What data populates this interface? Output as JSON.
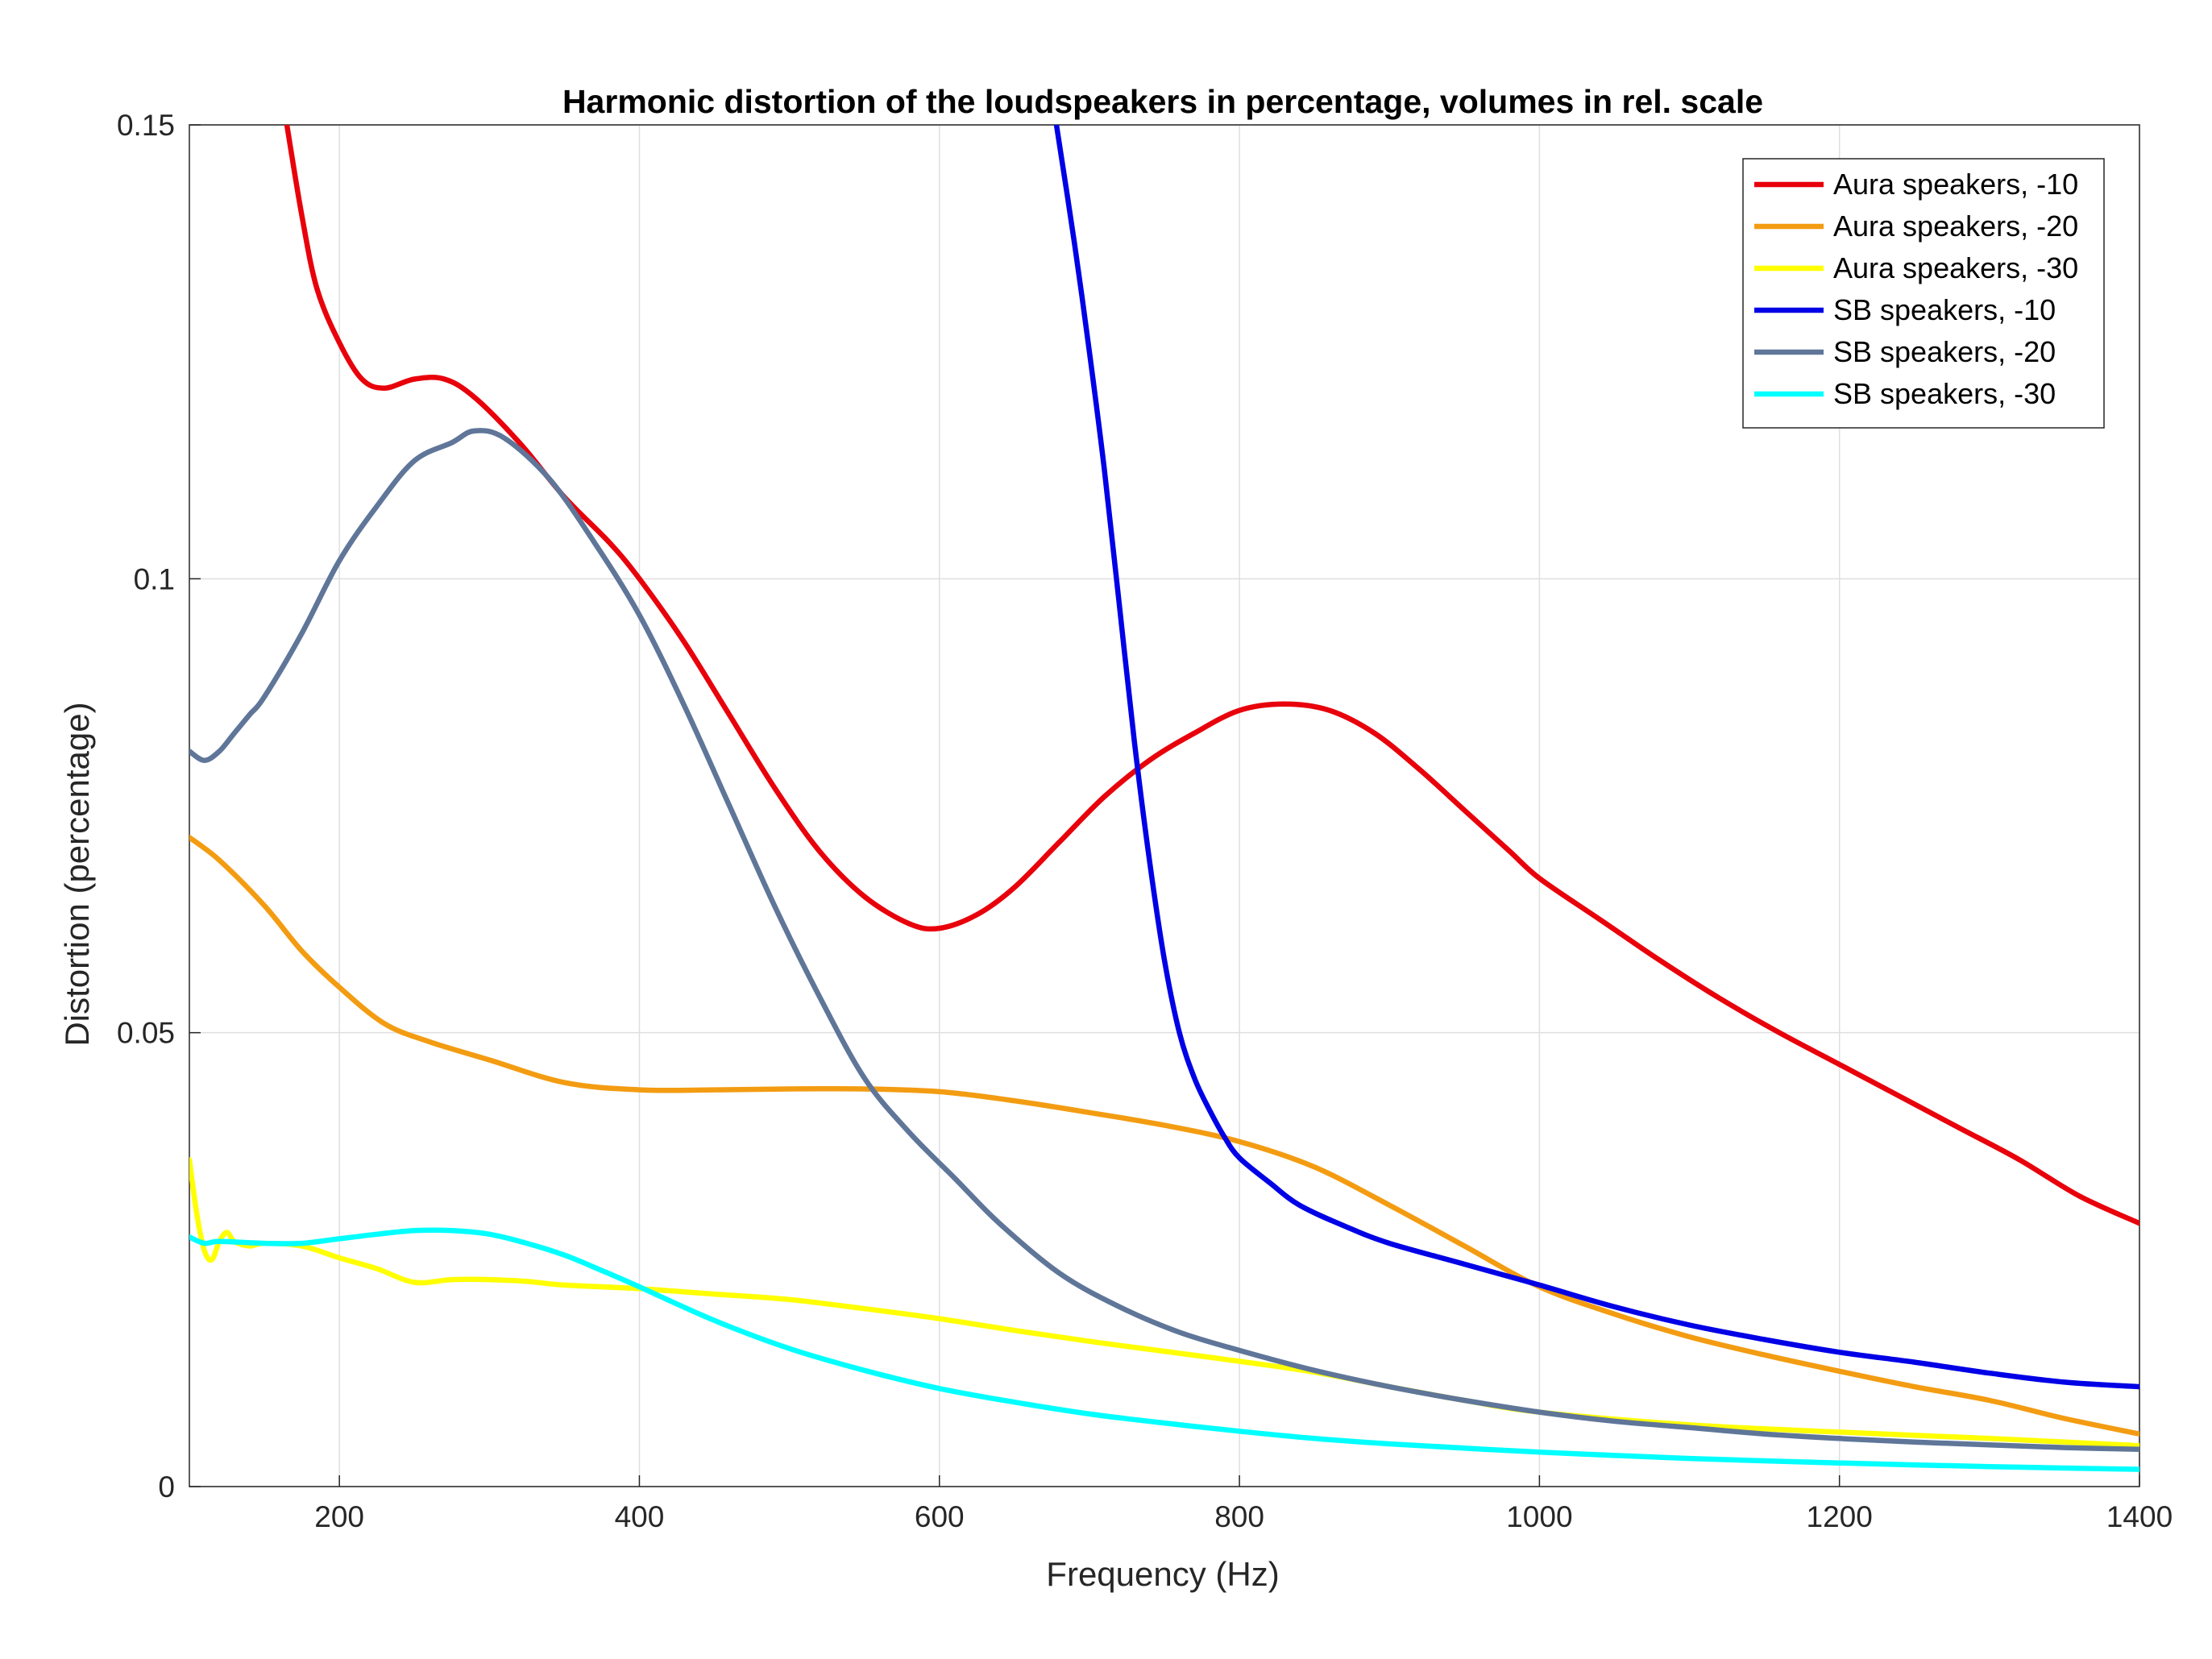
{
  "chart_data": {
    "type": "line",
    "title": "Harmonic distortion of the loudspeakers in percentage, volumes in rel. scale",
    "xlabel": "Frequency (Hz)",
    "ylabel": "Distortion (percentage)",
    "xlim": [
      100,
      1400
    ],
    "ylim": [
      0,
      0.15
    ],
    "xticks": [
      200,
      400,
      600,
      800,
      1000,
      1200,
      1400
    ],
    "xtick_labels": [
      "200",
      "400",
      "600",
      "800",
      "1000",
      "1200",
      "1400"
    ],
    "yticks": [
      0,
      0.05,
      0.1,
      0.15
    ],
    "ytick_labels": [
      "0",
      "0.05",
      "0.1",
      "0.15"
    ],
    "grid": true,
    "legend_position": "top-right",
    "series": [
      {
        "name": "Aura speakers, -10",
        "color": "#e8000b",
        "x": [
          165,
          175,
          185,
          200,
          215,
          230,
          250,
          270,
          290,
          320,
          350,
          380,
          400,
          430,
          460,
          490,
          520,
          550,
          580,
          600,
          625,
          650,
          680,
          710,
          740,
          770,
          800,
          830,
          860,
          890,
          920,
          950,
          980,
          1000,
          1040,
          1080,
          1120,
          1160,
          1200,
          1240,
          1280,
          1320,
          1360,
          1400
        ],
        "y": [
          0.15,
          0.14,
          0.132,
          0.126,
          0.122,
          0.121,
          0.122,
          0.122,
          0.12,
          0.115,
          0.109,
          0.104,
          0.1,
          0.093,
          0.085,
          0.077,
          0.07,
          0.065,
          0.062,
          0.0615,
          0.063,
          0.066,
          0.071,
          0.076,
          0.08,
          0.083,
          0.0855,
          0.0862,
          0.0855,
          0.083,
          0.079,
          0.0745,
          0.07,
          0.067,
          0.0625,
          0.058,
          0.0538,
          0.05,
          0.0465,
          0.043,
          0.0395,
          0.036,
          0.032,
          0.029
        ]
      },
      {
        "name": "Aura speakers, -20",
        "color": "#f39c12",
        "x": [
          100,
          120,
          150,
          175,
          200,
          230,
          260,
          300,
          350,
          400,
          450,
          500,
          550,
          600,
          650,
          700,
          750,
          800,
          850,
          900,
          950,
          1000,
          1050,
          1100,
          1150,
          1200,
          1250,
          1300,
          1350,
          1400
        ],
        "y": [
          0.0715,
          0.069,
          0.064,
          0.059,
          0.055,
          0.051,
          0.049,
          0.047,
          0.0445,
          0.0437,
          0.0437,
          0.0438,
          0.0438,
          0.0435,
          0.0425,
          0.0412,
          0.0398,
          0.038,
          0.0352,
          0.031,
          0.0265,
          0.022,
          0.019,
          0.0165,
          0.0145,
          0.0127,
          0.011,
          0.0095,
          0.0075,
          0.0058
        ]
      },
      {
        "name": "Aura speakers, -30",
        "color": "#ffff00",
        "x": [
          100,
          105,
          110,
          115,
          120,
          125,
          130,
          140,
          150,
          175,
          200,
          225,
          250,
          275,
          300,
          325,
          350,
          400,
          450,
          500,
          550,
          600,
          650,
          700,
          750,
          800,
          850,
          900,
          950,
          1000,
          1100,
          1200,
          1300,
          1400
        ],
        "y": [
          0.036,
          0.03,
          0.026,
          0.025,
          0.027,
          0.028,
          0.027,
          0.0265,
          0.0268,
          0.0265,
          0.0252,
          0.024,
          0.0225,
          0.0228,
          0.0228,
          0.0226,
          0.0222,
          0.0218,
          0.0212,
          0.0206,
          0.0196,
          0.0185,
          0.0172,
          0.016,
          0.0149,
          0.0138,
          0.0126,
          0.011,
          0.0095,
          0.0082,
          0.0068,
          0.006,
          0.0053,
          0.0045
        ]
      },
      {
        "name": "SB speakers, -10",
        "color": "#0000e6",
        "x": [
          678,
          690,
          700,
          710,
          720,
          730,
          740,
          750,
          760,
          770,
          780,
          790,
          800,
          820,
          840,
          870,
          900,
          950,
          1000,
          1050,
          1100,
          1150,
          1200,
          1250,
          1300,
          1350,
          1400
        ],
        "y": [
          0.15,
          0.137,
          0.125,
          0.112,
          0.097,
          0.082,
          0.069,
          0.058,
          0.05,
          0.045,
          0.0415,
          0.0385,
          0.0362,
          0.0335,
          0.031,
          0.0287,
          0.0268,
          0.0245,
          0.0222,
          0.0198,
          0.0178,
          0.0162,
          0.0148,
          0.0137,
          0.0125,
          0.0115,
          0.011
        ]
      },
      {
        "name": "SB speakers, -20",
        "color": "#5f7699",
        "x": [
          100,
          110,
          120,
          130,
          140,
          150,
          175,
          200,
          225,
          250,
          275,
          290,
          310,
          340,
          370,
          400,
          430,
          460,
          490,
          520,
          550,
          580,
          610,
          640,
          680,
          720,
          760,
          800,
          850,
          900,
          950,
          1000,
          1050,
          1100,
          1150,
          1200,
          1250,
          1300,
          1350,
          1400
        ],
        "y": [
          0.081,
          0.08,
          0.081,
          0.083,
          0.085,
          0.087,
          0.094,
          0.102,
          0.108,
          0.113,
          0.115,
          0.1163,
          0.1155,
          0.111,
          0.104,
          0.096,
          0.086,
          0.075,
          0.064,
          0.054,
          0.045,
          0.039,
          0.034,
          0.029,
          0.0235,
          0.0198,
          0.017,
          0.015,
          0.0128,
          0.011,
          0.0095,
          0.0082,
          0.0072,
          0.0065,
          0.0058,
          0.0053,
          0.0049,
          0.0046,
          0.0043,
          0.0041
        ]
      },
      {
        "name": "SB speakers, -30",
        "color": "#00ffff",
        "x": [
          100,
          110,
          120,
          150,
          175,
          200,
          225,
          250,
          275,
          300,
          325,
          350,
          375,
          400,
          450,
          500,
          550,
          600,
          650,
          700,
          750,
          800,
          850,
          900,
          1000,
          1100,
          1200,
          1300,
          1400
        ],
        "y": [
          0.0275,
          0.0268,
          0.027,
          0.0268,
          0.0268,
          0.0273,
          0.0278,
          0.0282,
          0.0282,
          0.0278,
          0.0268,
          0.0255,
          0.0238,
          0.022,
          0.0183,
          0.0152,
          0.0128,
          0.0108,
          0.0093,
          0.008,
          0.007,
          0.0061,
          0.0053,
          0.0047,
          0.0038,
          0.0031,
          0.0026,
          0.0022,
          0.0019
        ]
      }
    ]
  }
}
